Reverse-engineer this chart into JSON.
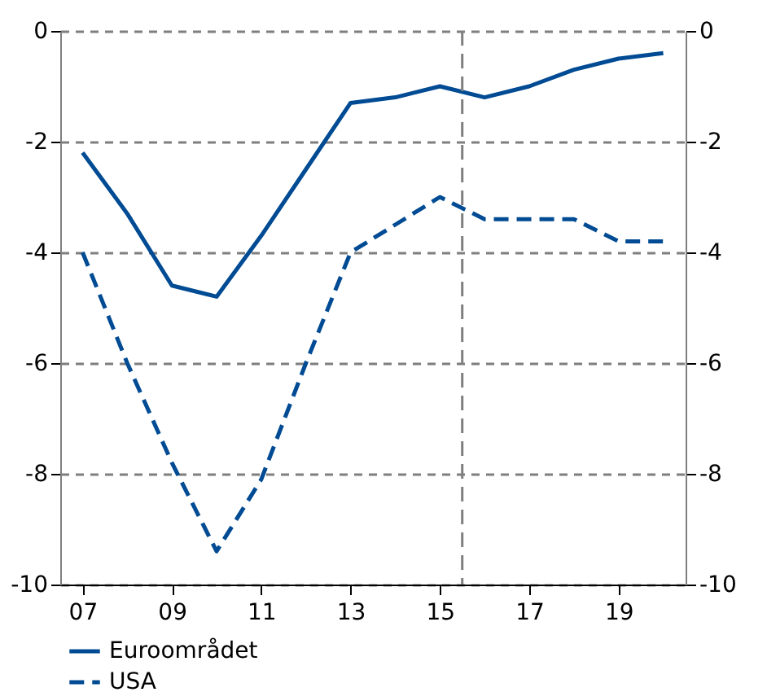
{
  "chart_data": {
    "type": "line",
    "x": [
      2007,
      2008,
      2009,
      2010,
      2011,
      2012,
      2013,
      2014,
      2015,
      2016,
      2017,
      2018,
      2019,
      2020
    ],
    "series": [
      {
        "name": "Euroområdet",
        "color": "#004b93",
        "line_style": "solid",
        "values": [
          -2.2,
          -3.3,
          -4.6,
          -4.8,
          -3.7,
          -2.5,
          -1.3,
          -1.2,
          -1.0,
          -1.2,
          -1.0,
          -0.7,
          -0.5,
          -0.4
        ]
      },
      {
        "name": "USA",
        "color": "#004b93",
        "line_style": "dashed",
        "values": [
          -4.0,
          -6.0,
          -7.8,
          -9.4,
          -8.1,
          -6.0,
          -4.0,
          -3.5,
          -3.0,
          -3.4,
          -3.4,
          -3.4,
          -3.8,
          -3.8
        ]
      }
    ],
    "xlim": [
      2006.5,
      2020.5
    ],
    "xticks": [
      {
        "value": 2007,
        "label": "07"
      },
      {
        "value": 2009,
        "label": "09"
      },
      {
        "value": 2011,
        "label": "11"
      },
      {
        "value": 2013,
        "label": "13"
      },
      {
        "value": 2015,
        "label": "15"
      },
      {
        "value": 2017,
        "label": "17"
      },
      {
        "value": 2019,
        "label": "19"
      }
    ],
    "ylim": [
      -10,
      0
    ],
    "yticks": [
      -10,
      -8,
      -6,
      -4,
      -2,
      0
    ],
    "y2lim": [
      -10,
      0
    ],
    "y2ticks": [
      -10,
      -8,
      -6,
      -4,
      -2,
      0
    ],
    "grid": "y",
    "legend": "bottom left",
    "ref_lines": [
      {
        "axis": "x",
        "value": 2015.5,
        "color": "#7f7f7f",
        "line_style": "dashed"
      }
    ]
  }
}
